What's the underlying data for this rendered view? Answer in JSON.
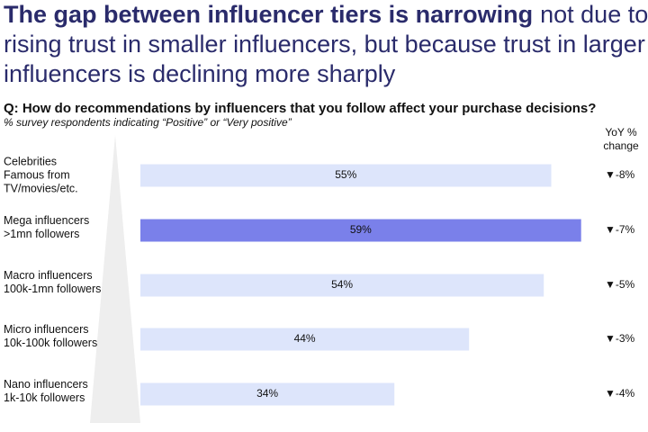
{
  "chart_data": {
    "type": "bar",
    "title": {
      "bold": "The gap between influencer tiers is narrowing",
      "lines": [
        "not due to",
        "rising trust in smaller influencers, but because trust in larger",
        "influencers is declining more sharply"
      ]
    },
    "question": "Q: How do recommendations by influencers that you follow affect your purchase decisions?",
    "subtitle": "% survey respondents indicating “Positive” or “Very positive”",
    "yoy_header": [
      "YoY %",
      "change"
    ],
    "categories": [
      [
        "Celebrities",
        "Famous from",
        "TV/movies/etc."
      ],
      [
        "Mega influencers",
        ">1mn followers"
      ],
      [
        "Macro influencers",
        "100k-1mn followers"
      ],
      [
        "Micro influencers",
        "10k-100k followers"
      ],
      [
        "Nano influencers",
        "1k-10k followers"
      ]
    ],
    "values": [
      55,
      59,
      54,
      44,
      34
    ],
    "value_labels": [
      "55%",
      "59%",
      "54%",
      "44%",
      "34%"
    ],
    "colors": [
      "#dde5fb",
      "#7a80ea",
      "#dde5fb",
      "#dde5fb",
      "#dde5fb"
    ],
    "label_colors": [
      "#222222",
      "#ffffff",
      "#222222",
      "#222222",
      "#222222"
    ],
    "yoy": {
      "values": [
        -8,
        -7,
        -5,
        -3,
        -4
      ],
      "value_labels": [
        "▼-8%",
        "▼-7%",
        "▼-5%",
        "▼-3%",
        "▼-4%"
      ]
    }
  }
}
